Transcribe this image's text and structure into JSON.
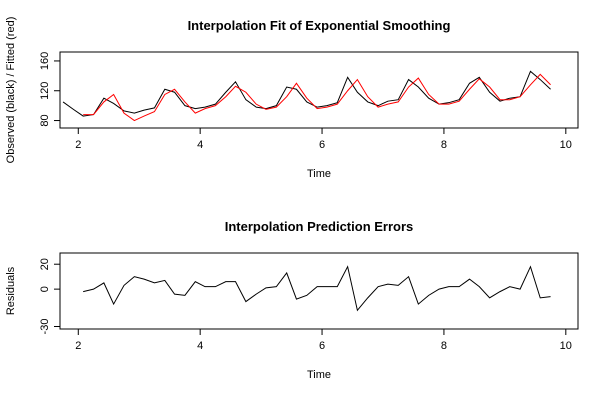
{
  "chart_data": [
    {
      "type": "line",
      "title": "Interpolation Fit of Exponential Smoothing",
      "x_label": "Time",
      "y_label": "Observed (black) / Fitted (red)",
      "x": [
        1.75,
        1.92,
        2.08,
        2.25,
        2.42,
        2.58,
        2.75,
        2.92,
        3.08,
        3.25,
        3.42,
        3.58,
        3.75,
        3.92,
        4.08,
        4.25,
        4.42,
        4.58,
        4.75,
        4.92,
        5.08,
        5.25,
        5.42,
        5.58,
        5.75,
        5.92,
        6.08,
        6.25,
        6.42,
        6.58,
        6.75,
        6.92,
        7.08,
        7.25,
        7.42,
        7.58,
        7.75,
        7.92,
        8.08,
        8.25,
        8.42,
        8.58,
        8.75,
        8.92,
        9.08,
        9.25,
        9.42,
        9.58,
        9.75
      ],
      "series": [
        {
          "color": "#000000",
          "values": [
            105,
            95,
            86,
            88,
            110,
            103,
            93,
            90,
            94,
            97,
            122,
            118,
            100,
            96,
            98,
            102,
            118,
            132,
            108,
            98,
            96,
            100,
            125,
            122,
            105,
            98,
            100,
            104,
            138,
            118,
            105,
            100,
            106,
            108,
            135,
            125,
            110,
            102,
            104,
            108,
            130,
            138,
            118,
            106,
            110,
            112,
            146,
            135,
            122
          ]
        },
        {
          "color": "#ff0000",
          "values": [
            null,
            null,
            88,
            88,
            105,
            115,
            90,
            80,
            86,
            92,
            115,
            122,
            105,
            90,
            96,
            100,
            112,
            126,
            118,
            102,
            95,
            98,
            112,
            130,
            110,
            96,
            98,
            102,
            120,
            135,
            112,
            98,
            102,
            105,
            125,
            137,
            115,
            102,
            102,
            106,
            122,
            136,
            125,
            108,
            108,
            112,
            128,
            142,
            128
          ]
        }
      ],
      "xlim": [
        1.7,
        10.2
      ],
      "xticks": [
        2,
        4,
        6,
        8,
        10
      ],
      "ylim": [
        70,
        172
      ],
      "yticks": [
        80,
        120,
        160
      ]
    },
    {
      "type": "line",
      "title": "Interpolation Prediction Errors",
      "x_label": "Time",
      "y_label": "Residuals",
      "x": [
        2.08,
        2.25,
        2.42,
        2.58,
        2.75,
        2.92,
        3.08,
        3.25,
        3.42,
        3.58,
        3.75,
        3.92,
        4.08,
        4.25,
        4.42,
        4.58,
        4.75,
        4.92,
        5.08,
        5.25,
        5.42,
        5.58,
        5.75,
        5.92,
        6.08,
        6.25,
        6.42,
        6.58,
        6.75,
        6.92,
        7.08,
        7.25,
        7.42,
        7.58,
        7.75,
        7.92,
        8.08,
        8.25,
        8.42,
        8.58,
        8.75,
        8.92,
        9.08,
        9.25,
        9.42,
        9.58,
        9.75
      ],
      "series": [
        {
          "color": "#000000",
          "values": [
            -2,
            0,
            5,
            -12,
            3,
            10,
            8,
            5,
            7,
            -4,
            -5,
            6,
            2,
            2,
            6,
            6,
            -10,
            -4,
            1,
            2,
            13,
            -8,
            -5,
            2,
            2,
            2,
            18,
            -17,
            -7,
            2,
            4,
            3,
            10,
            -12,
            -5,
            0,
            2,
            2,
            8,
            2,
            -7,
            -2,
            2,
            0,
            18,
            -7,
            -6
          ]
        }
      ],
      "xlim": [
        1.7,
        10.2
      ],
      "xticks": [
        2,
        4,
        6,
        8,
        10
      ],
      "ylim": [
        -32,
        29
      ],
      "yticks": [
        -30,
        0,
        20
      ]
    }
  ]
}
